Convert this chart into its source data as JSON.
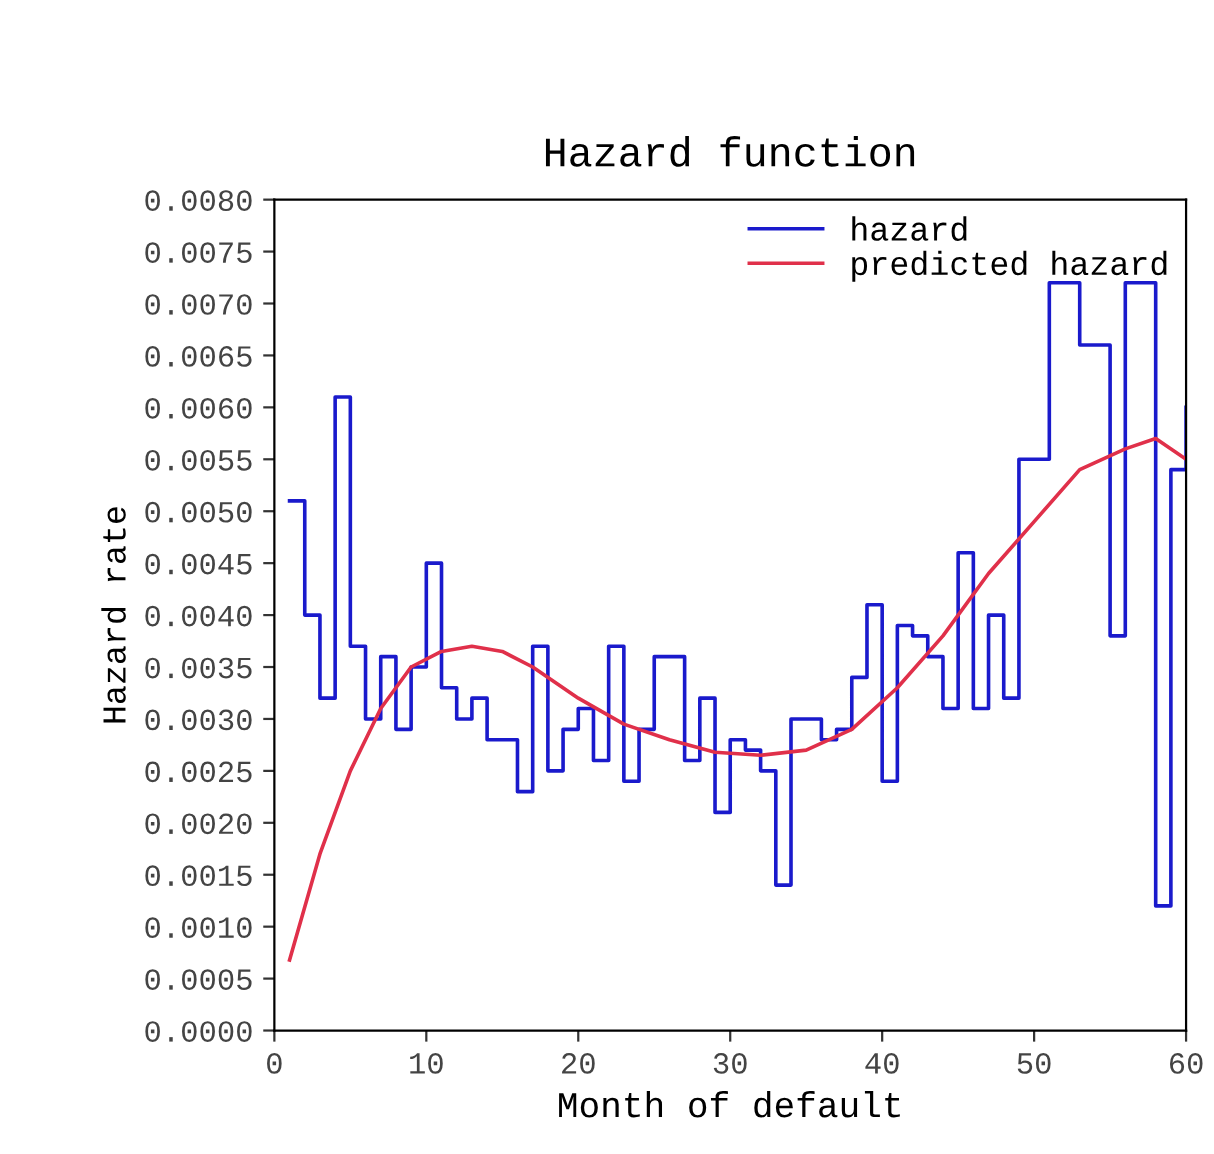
{
  "chart_data": {
    "type": "step",
    "title": "Hazard function",
    "xlabel": "Month of default",
    "ylabel": "Hazard rate",
    "xlim": [
      0,
      60
    ],
    "xticks": [
      0,
      10,
      20,
      30,
      40,
      50,
      60
    ],
    "ylim": [
      0,
      0.008
    ],
    "yticks": [
      {
        "value": 0,
        "label": "0.0000"
      },
      {
        "value": 0.0005,
        "label": "0.0005"
      },
      {
        "value": 0.001,
        "label": "0.0010"
      },
      {
        "value": 0.0015,
        "label": "0.0015"
      },
      {
        "value": 0.002,
        "label": "0.0020"
      },
      {
        "value": 0.0025,
        "label": "0.0025"
      },
      {
        "value": 0.003,
        "label": "0.0030"
      },
      {
        "value": 0.0035,
        "label": "0.0035"
      },
      {
        "value": 0.004,
        "label": "0.0040"
      },
      {
        "value": 0.0045,
        "label": "0.0045"
      },
      {
        "value": 0.005,
        "label": "0.0050"
      },
      {
        "value": 0.0055,
        "label": "0.0055"
      },
      {
        "value": 0.006,
        "label": "0.0060"
      },
      {
        "value": 0.0065,
        "label": "0.0065"
      },
      {
        "value": 0.007,
        "label": "0.0070"
      },
      {
        "value": 0.0075,
        "label": "0.0075"
      },
      {
        "value": 0.008,
        "label": "0.0080"
      }
    ],
    "grid": false,
    "legend": "top right",
    "series": [
      {
        "name": "hazard",
        "color": "#1a1acc",
        "x": [
          1,
          2,
          3,
          4,
          5,
          6,
          7,
          8,
          9,
          10,
          11,
          12,
          13,
          14,
          15,
          16,
          17,
          18,
          19,
          20,
          21,
          22,
          23,
          24,
          25,
          26,
          27,
          28,
          29,
          30,
          31,
          32,
          33,
          34,
          35,
          36,
          37,
          38,
          39,
          40,
          41,
          42,
          43,
          44,
          45,
          46,
          47,
          48,
          49,
          50,
          51,
          52,
          53,
          54,
          55,
          56,
          57,
          58,
          59,
          60
        ],
        "values": [
          0.0051,
          0.004,
          0.0032,
          0.0061,
          0.0037,
          0.003,
          0.0036,
          0.0029,
          0.0035,
          0.0045,
          0.0033,
          0.003,
          0.0032,
          0.0028,
          0.0028,
          0.0023,
          0.0037,
          0.0025,
          0.0029,
          0.0031,
          0.0026,
          0.0037,
          0.0024,
          0.0029,
          0.0036,
          0.0036,
          0.0026,
          0.0032,
          0.0021,
          0.0028,
          0.0027,
          0.0025,
          0.0014,
          0.003,
          0.003,
          0.0028,
          0.0029,
          0.0034,
          0.0041,
          0.0024,
          0.0039,
          0.0038,
          0.0036,
          0.0031,
          0.0046,
          0.0031,
          0.004,
          0.0032,
          0.0055,
          0.0055,
          0.0072,
          0.0072,
          0.0066,
          0.0066,
          0.0038,
          0.0072,
          0.0072,
          0.0012,
          0.0054,
          0.006
        ]
      },
      {
        "name": "predicted hazard",
        "type": "line",
        "color": "#e0304a",
        "x": [
          1,
          3,
          5,
          7,
          9,
          11,
          13,
          15,
          17,
          20,
          23,
          26,
          29,
          32,
          35,
          38,
          41,
          44,
          47,
          50,
          53,
          56,
          58,
          60
        ],
        "values": [
          0.00068,
          0.0017,
          0.0025,
          0.0031,
          0.0035,
          0.00365,
          0.0037,
          0.00365,
          0.0035,
          0.0032,
          0.00295,
          0.0028,
          0.00268,
          0.00265,
          0.0027,
          0.0029,
          0.0033,
          0.0038,
          0.0044,
          0.0049,
          0.0054,
          0.0056,
          0.0057,
          0.0055
        ]
      }
    ]
  }
}
